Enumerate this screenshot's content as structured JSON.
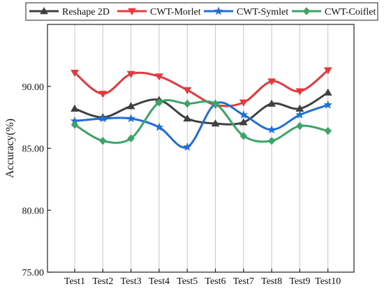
{
  "chart_data": {
    "type": "line",
    "title": "",
    "xlabel": "",
    "ylabel": "Accuracy(%)",
    "categories": [
      "Test1",
      "Test2",
      "Test3",
      "Test4",
      "Test5",
      "Test6",
      "Test7",
      "Test8",
      "Test9",
      "Test10"
    ],
    "ylim": [
      75.0,
      95.0
    ],
    "yticks": [
      "75.00",
      "80.00",
      "85.00",
      "90.00"
    ],
    "grid": "vertical",
    "legend_position": "top",
    "series": [
      {
        "name": "Reshape 2D",
        "color": "#404040",
        "marker": "triangle",
        "values": [
          88.2,
          87.5,
          88.4,
          88.9,
          87.4,
          87.0,
          87.1,
          88.6,
          88.2,
          89.5
        ]
      },
      {
        "name": "CWT-Morlet",
        "color": "#e8383d",
        "marker": "triangle-down",
        "values": [
          91.1,
          89.4,
          91.0,
          90.8,
          89.7,
          88.5,
          88.7,
          90.4,
          89.6,
          91.3
        ]
      },
      {
        "name": "CWT-Symlet",
        "color": "#1f6fd6",
        "marker": "star",
        "values": [
          87.2,
          87.4,
          87.4,
          86.7,
          85.1,
          88.6,
          87.7,
          86.5,
          87.7,
          88.5
        ]
      },
      {
        "name": "CWT-Coiflet",
        "color": "#3aa566",
        "marker": "diamond",
        "values": [
          86.9,
          85.6,
          85.8,
          88.7,
          88.6,
          88.6,
          86.0,
          85.6,
          86.8,
          86.4
        ]
      }
    ]
  }
}
